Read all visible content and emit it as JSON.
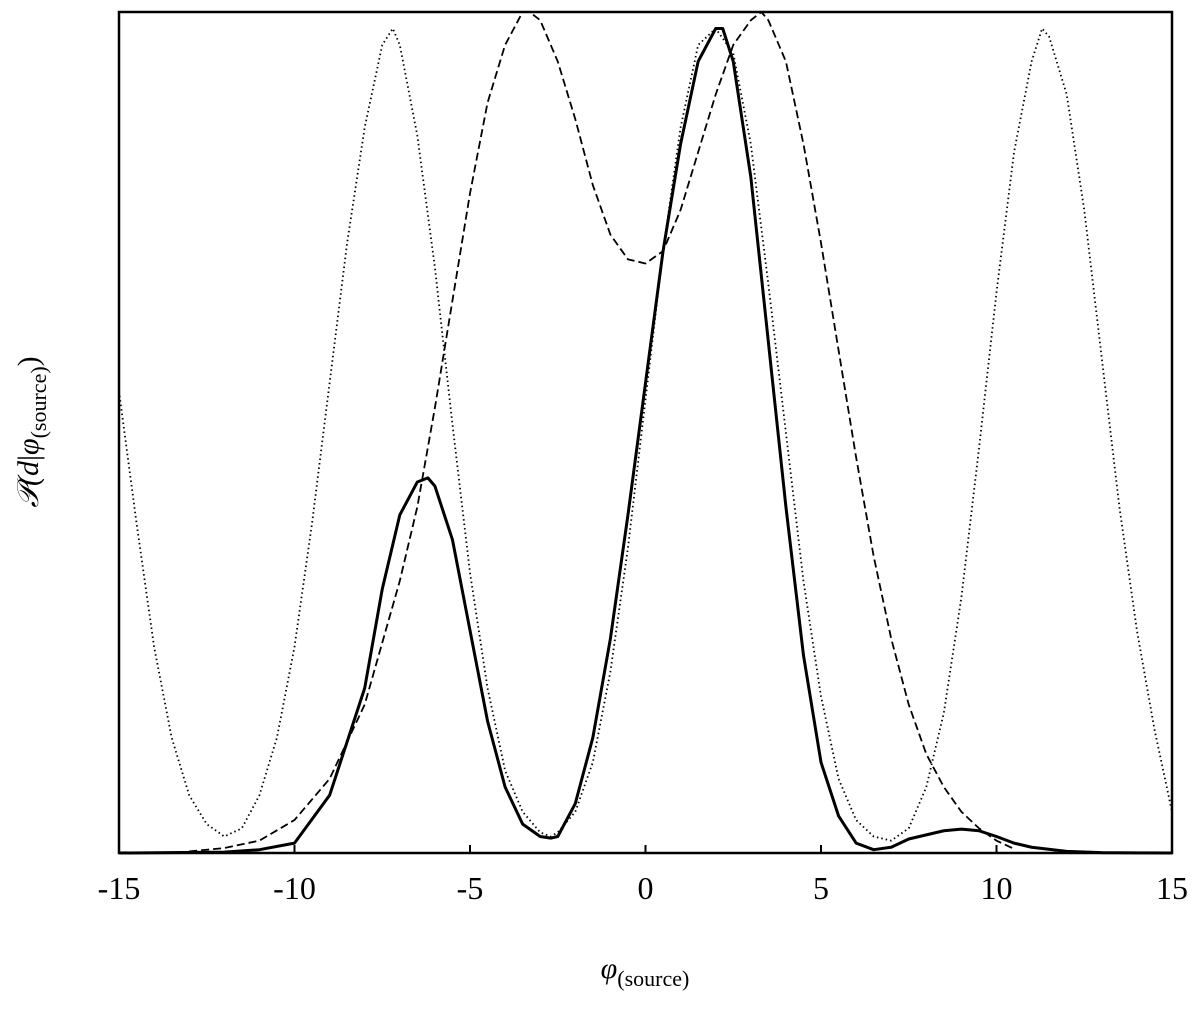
{
  "chart_data": {
    "type": "line",
    "title": "",
    "xlabel": {
      "symbol": "φ",
      "subscript": "(source)"
    },
    "ylabel": {
      "prefix": "𝒫(",
      "d": "d",
      "bar": "|",
      "symbol": "φ",
      "subscript": "(source)",
      "suffix": ")"
    },
    "xlim": [
      -15,
      15
    ],
    "ylim": [
      0,
      1.02
    ],
    "xticks": [
      -15,
      -10,
      -5,
      0,
      5,
      10,
      15
    ],
    "xtick_labels": [
      "-15",
      "-10",
      "-5",
      "0",
      "5",
      "10",
      "15"
    ],
    "yticks_shown": false,
    "grid": false,
    "legend": "none",
    "series": [
      {
        "style": "solid",
        "color": "#000000",
        "x": [
          -15,
          -12,
          -11,
          -10,
          -9,
          -8,
          -7.5,
          -7,
          -6.5,
          -6.2,
          -6,
          -5.5,
          -5,
          -4.5,
          -4,
          -3.5,
          -3,
          -2.7,
          -2.5,
          -2,
          -1.5,
          -1,
          -0.5,
          0,
          0.5,
          1,
          1.5,
          2,
          2.2,
          2.5,
          3,
          3.5,
          4,
          4.5,
          5,
          5.5,
          6,
          6.5,
          7,
          7.5,
          8,
          8.5,
          9,
          9.5,
          10,
          10.5,
          11,
          12,
          13,
          14,
          15
        ],
        "y": [
          0,
          0.001,
          0.004,
          0.012,
          0.07,
          0.2,
          0.32,
          0.41,
          0.45,
          0.455,
          0.445,
          0.38,
          0.27,
          0.16,
          0.08,
          0.035,
          0.02,
          0.018,
          0.02,
          0.06,
          0.14,
          0.26,
          0.41,
          0.57,
          0.73,
          0.86,
          0.96,
          1.0,
          1.0,
          0.96,
          0.82,
          0.62,
          0.42,
          0.24,
          0.11,
          0.045,
          0.012,
          0.004,
          0.007,
          0.017,
          0.022,
          0.027,
          0.029,
          0.027,
          0.02,
          0.012,
          0.007,
          0.002,
          0.0005,
          0.0001,
          0
        ]
      },
      {
        "style": "dashed",
        "color": "#000000",
        "x": [
          -13,
          -12,
          -11,
          -10,
          -9,
          -8,
          -7,
          -6.5,
          -6,
          -5.5,
          -5,
          -4.5,
          -4,
          -3.5,
          -3.3,
          -3,
          -2.5,
          -2,
          -1.5,
          -1,
          -0.5,
          0,
          0.5,
          1,
          1.5,
          2,
          2.5,
          3,
          3.3,
          3.5,
          4,
          4.5,
          5,
          5.5,
          6,
          6.5,
          7,
          7.5,
          8,
          8.5,
          9,
          9.5,
          10,
          10.5
        ],
        "y": [
          0.002,
          0.006,
          0.015,
          0.04,
          0.09,
          0.18,
          0.33,
          0.42,
          0.54,
          0.67,
          0.8,
          0.91,
          0.98,
          1.02,
          1.02,
          1.01,
          0.96,
          0.89,
          0.81,
          0.75,
          0.72,
          0.715,
          0.73,
          0.78,
          0.85,
          0.92,
          0.98,
          1.01,
          1.02,
          1.01,
          0.96,
          0.86,
          0.74,
          0.61,
          0.48,
          0.36,
          0.26,
          0.18,
          0.12,
          0.08,
          0.05,
          0.03,
          0.015,
          0.005
        ]
      },
      {
        "style": "dotted",
        "color": "#000000",
        "x": [
          -15,
          -14.5,
          -14,
          -13.5,
          -13,
          -12.5,
          -12,
          -11.5,
          -11,
          -10.5,
          -10,
          -9.5,
          -9,
          -8.5,
          -8,
          -7.5,
          -7.2,
          -7,
          -6.5,
          -6,
          -5.5,
          -5,
          -4.5,
          -4,
          -3.5,
          -3,
          -2.7,
          -2.5,
          -2,
          -1.5,
          -1,
          -0.5,
          0,
          0.5,
          1,
          1.5,
          2,
          2.5,
          3,
          3.5,
          4,
          4.5,
          5,
          5.5,
          6,
          6.5,
          7,
          7.5,
          8,
          8.5,
          9,
          9.5,
          10,
          10.5,
          11,
          11.3,
          11.5,
          12,
          12.5,
          13,
          13.5,
          14,
          14.5,
          15
        ],
        "y": [
          0.56,
          0.4,
          0.25,
          0.14,
          0.07,
          0.035,
          0.02,
          0.03,
          0.07,
          0.14,
          0.25,
          0.4,
          0.57,
          0.74,
          0.88,
          0.98,
          1.0,
          0.98,
          0.87,
          0.71,
          0.52,
          0.34,
          0.2,
          0.1,
          0.05,
          0.025,
          0.02,
          0.025,
          0.05,
          0.11,
          0.22,
          0.37,
          0.55,
          0.73,
          0.88,
          0.98,
          1.0,
          0.97,
          0.86,
          0.69,
          0.51,
          0.33,
          0.19,
          0.09,
          0.04,
          0.02,
          0.015,
          0.03,
          0.08,
          0.17,
          0.31,
          0.49,
          0.68,
          0.85,
          0.96,
          1.0,
          0.99,
          0.92,
          0.78,
          0.6,
          0.42,
          0.27,
          0.15,
          0.05
        ]
      }
    ]
  }
}
